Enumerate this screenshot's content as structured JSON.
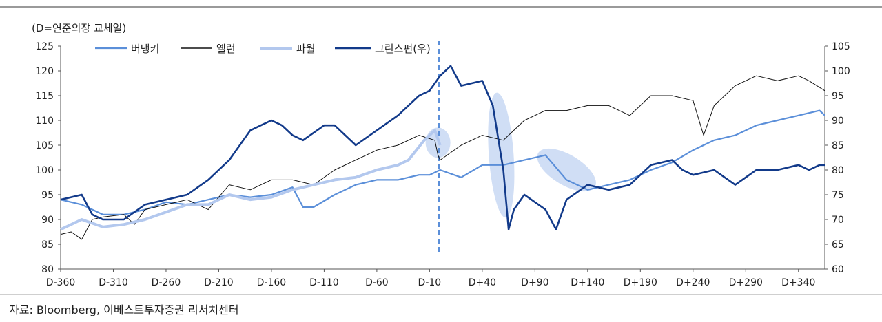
{
  "header": {
    "unit_note": "(D=연준의장 교체일)"
  },
  "footer": {
    "source": "자료: Bloomberg, 이베스트투자증권 리서치센터"
  },
  "chart_data": {
    "type": "line",
    "title": "",
    "xlabel": "",
    "ylabel": "",
    "x_tick_labels": [
      "D-360",
      "D-310",
      "D-260",
      "D-210",
      "D-160",
      "D-110",
      "D-60",
      "D-10",
      "D+40",
      "D+90",
      "D+140",
      "D+190",
      "D+240",
      "D+290",
      "D+340"
    ],
    "x_tick_values": [
      -360,
      -310,
      -260,
      -210,
      -160,
      -110,
      -60,
      -10,
      40,
      90,
      140,
      190,
      240,
      290,
      340
    ],
    "xlim": [
      -360,
      365
    ],
    "ylim_left": [
      80,
      125
    ],
    "ylim_right": [
      60,
      105
    ],
    "y_ticks_left": [
      "80",
      "85",
      "90",
      "95",
      "100",
      "105",
      "110",
      "115",
      "120",
      "125"
    ],
    "y_ticks_right": [
      "60",
      "65",
      "70",
      "75",
      "80",
      "85",
      "90",
      "95",
      "100",
      "105"
    ],
    "change_date_x": 0,
    "colors": {
      "bernanke": "#5b8fd9",
      "yellen": "#111111",
      "powell": "#b3c8ee",
      "greenspan": "#123a8a",
      "vline": "#5b8fd9",
      "highlight": "#a9c2ec"
    },
    "series": [
      {
        "name": "버냉키",
        "axis": "left",
        "points": [
          [
            -360,
            94
          ],
          [
            -340,
            93
          ],
          [
            -320,
            91
          ],
          [
            -300,
            91
          ],
          [
            -280,
            92
          ],
          [
            -260,
            93.5
          ],
          [
            -240,
            93
          ],
          [
            -220,
            94
          ],
          [
            -200,
            95
          ],
          [
            -180,
            94.5
          ],
          [
            -160,
            95
          ],
          [
            -140,
            96.5
          ],
          [
            -130,
            92.5
          ],
          [
            -120,
            92.5
          ],
          [
            -100,
            95
          ],
          [
            -80,
            97
          ],
          [
            -60,
            98
          ],
          [
            -40,
            98
          ],
          [
            -20,
            99
          ],
          [
            -10,
            99
          ],
          [
            0,
            100
          ],
          [
            20,
            98.5
          ],
          [
            40,
            101
          ],
          [
            60,
            101
          ],
          [
            80,
            102
          ],
          [
            100,
            103
          ],
          [
            120,
            98
          ],
          [
            140,
            96
          ],
          [
            160,
            97
          ],
          [
            180,
            98
          ],
          [
            200,
            100
          ],
          [
            220,
            101.5
          ],
          [
            240,
            104
          ],
          [
            260,
            106
          ],
          [
            280,
            107
          ],
          [
            300,
            109
          ],
          [
            320,
            110
          ],
          [
            340,
            111
          ],
          [
            360,
            112
          ],
          [
            365,
            111
          ]
        ]
      },
      {
        "name": "옐런",
        "axis": "left",
        "points": [
          [
            -360,
            87
          ],
          [
            -350,
            87.5
          ],
          [
            -340,
            86
          ],
          [
            -330,
            90
          ],
          [
            -320,
            90.5
          ],
          [
            -300,
            91
          ],
          [
            -290,
            89
          ],
          [
            -280,
            92
          ],
          [
            -260,
            93
          ],
          [
            -240,
            94
          ],
          [
            -220,
            92
          ],
          [
            -200,
            97
          ],
          [
            -180,
            96
          ],
          [
            -160,
            98
          ],
          [
            -140,
            98
          ],
          [
            -120,
            97
          ],
          [
            -100,
            100
          ],
          [
            -80,
            102
          ],
          [
            -60,
            104
          ],
          [
            -40,
            105
          ],
          [
            -20,
            107
          ],
          [
            -5,
            106
          ],
          [
            -2,
            103
          ],
          [
            0,
            102
          ],
          [
            20,
            105
          ],
          [
            40,
            107
          ],
          [
            60,
            106
          ],
          [
            80,
            110
          ],
          [
            100,
            112
          ],
          [
            120,
            112
          ],
          [
            140,
            113
          ],
          [
            160,
            113
          ],
          [
            180,
            111
          ],
          [
            200,
            115
          ],
          [
            220,
            115
          ],
          [
            240,
            114
          ],
          [
            250,
            107
          ],
          [
            260,
            113
          ],
          [
            280,
            117
          ],
          [
            300,
            119
          ],
          [
            320,
            118
          ],
          [
            340,
            119
          ],
          [
            350,
            118
          ],
          [
            365,
            116
          ]
        ]
      },
      {
        "name": "파월",
        "axis": "left",
        "points": [
          [
            -360,
            88
          ],
          [
            -340,
            90
          ],
          [
            -320,
            88.5
          ],
          [
            -300,
            89
          ],
          [
            -280,
            90
          ],
          [
            -260,
            91.5
          ],
          [
            -240,
            93
          ],
          [
            -220,
            93
          ],
          [
            -200,
            95
          ],
          [
            -180,
            94
          ],
          [
            -160,
            94.5
          ],
          [
            -140,
            96
          ],
          [
            -120,
            97
          ],
          [
            -100,
            98
          ],
          [
            -80,
            98.5
          ],
          [
            -60,
            100
          ],
          [
            -40,
            101
          ],
          [
            -30,
            102
          ],
          [
            -15,
            106
          ],
          [
            -5,
            108
          ],
          [
            0,
            105
          ]
        ]
      },
      {
        "name": "그린스펀(우)",
        "axis": "right",
        "points": [
          [
            -360,
            74
          ],
          [
            -340,
            75
          ],
          [
            -330,
            71
          ],
          [
            -320,
            70
          ],
          [
            -300,
            70
          ],
          [
            -280,
            73
          ],
          [
            -260,
            74
          ],
          [
            -240,
            75
          ],
          [
            -220,
            78
          ],
          [
            -200,
            82
          ],
          [
            -180,
            88
          ],
          [
            -160,
            90
          ],
          [
            -150,
            89
          ],
          [
            -140,
            87
          ],
          [
            -130,
            86
          ],
          [
            -110,
            89
          ],
          [
            -100,
            89
          ],
          [
            -80,
            85
          ],
          [
            -60,
            88
          ],
          [
            -40,
            91
          ],
          [
            -20,
            95
          ],
          [
            -10,
            96
          ],
          [
            0,
            99
          ],
          [
            10,
            101
          ],
          [
            20,
            97
          ],
          [
            40,
            98
          ],
          [
            50,
            93
          ],
          [
            60,
            80
          ],
          [
            65,
            68
          ],
          [
            70,
            72
          ],
          [
            80,
            75
          ],
          [
            100,
            72
          ],
          [
            110,
            68
          ],
          [
            120,
            74
          ],
          [
            140,
            77
          ],
          [
            160,
            76
          ],
          [
            180,
            77
          ],
          [
            200,
            81
          ],
          [
            220,
            82
          ],
          [
            230,
            80
          ],
          [
            240,
            79
          ],
          [
            260,
            80
          ],
          [
            280,
            77
          ],
          [
            300,
            80
          ],
          [
            320,
            80
          ],
          [
            340,
            81
          ],
          [
            350,
            80
          ],
          [
            360,
            81
          ],
          [
            365,
            81
          ]
        ]
      }
    ]
  }
}
